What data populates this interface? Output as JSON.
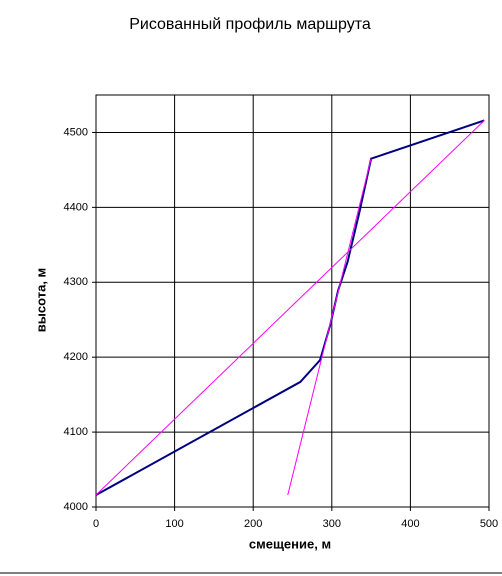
{
  "chart_data": {
    "type": "line",
    "title": "Рисованный профиль маршрута",
    "x_label": "смещение, м",
    "y_label": "высота, м",
    "xlim": [
      0,
      500
    ],
    "xticks": [
      0,
      100,
      200,
      300,
      400,
      500
    ],
    "ylim": [
      4000,
      4550
    ],
    "yticks": [
      4000,
      4100,
      4200,
      4300,
      4400,
      4500
    ],
    "grid": true,
    "series": [
      {
        "color": "#000080",
        "width": 2,
        "x": [
          0,
          260,
          285,
          298,
          308,
          320,
          335,
          350,
          494
        ],
        "values": [
          4016,
          4167,
          4196,
          4243,
          4289,
          4327,
          4393,
          4465,
          4516
        ]
      },
      {
        "color": "#ff00ff",
        "width": 1,
        "x": [
          0,
          494
        ],
        "values": [
          4016,
          4516
        ]
      },
      {
        "color": "#ff00ff",
        "width": 1,
        "x": [
          244,
          350
        ],
        "values": [
          4016,
          4465
        ]
      }
    ]
  }
}
